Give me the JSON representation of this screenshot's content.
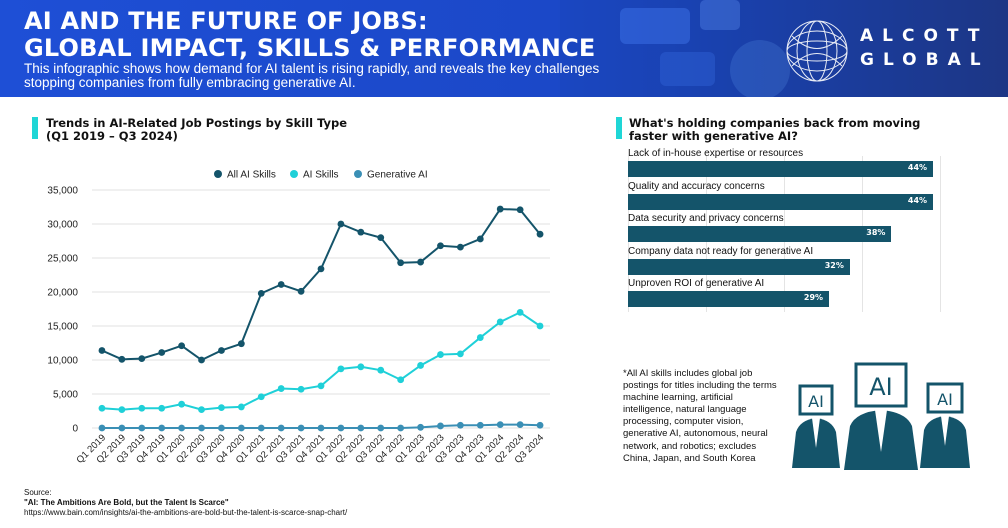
{
  "header": {
    "title_line1": "AI AND THE FUTURE OF JOBS:",
    "title_line2": "GLOBAL IMPACT, SKILLS & PERFORMANCE",
    "subtitle": "This infographic shows how demand for AI talent is rising rapidly, and reveals the key challenges stopping companies from fully embracing generative AI.",
    "logo_line1": "ALCOTT",
    "logo_line2": "GLOBAL"
  },
  "colors": {
    "banner": "#1e4fd6",
    "accent": "#1fd6d6",
    "all_ai": "#14546a",
    "ai_skills": "#1fd0d8",
    "gen_ai": "#3a8fb5",
    "bar": "#14546a"
  },
  "left_panel": {
    "title_line1": "Trends in AI-Related Job Postings by Skill Type",
    "title_line2": "(Q1 2019 – Q3 2024)"
  },
  "right_panel": {
    "title_line1": "What's holding companies back from moving",
    "title_line2": "faster with generative AI?"
  },
  "chart_data": [
    {
      "type": "line",
      "x": [
        "Q1 2019",
        "Q2 2019",
        "Q3 2019",
        "Q4 2019",
        "Q1 2020",
        "Q2 2020",
        "Q3 2020",
        "Q4 2020",
        "Q1 2021",
        "Q2 2021",
        "Q3 2021",
        "Q4 2021",
        "Q1 2022",
        "Q2 2022",
        "Q3 2022",
        "Q4 2022",
        "Q1 2023",
        "Q2 2023",
        "Q3 2023",
        "Q4 2023",
        "Q1 2024",
        "Q2 2024",
        "Q3 2024"
      ],
      "series": [
        {
          "name": "All AI Skills",
          "color": "#14546a",
          "values": [
            11400,
            10100,
            10200,
            11100,
            12100,
            10000,
            11400,
            12400,
            19800,
            21100,
            20100,
            23400,
            30000,
            28800,
            28000,
            24300,
            24400,
            26800,
            26600,
            27800,
            32200,
            32100,
            28500
          ]
        },
        {
          "name": "AI Skills",
          "color": "#1fd0d8",
          "values": [
            2900,
            2700,
            2900,
            2900,
            3500,
            2700,
            3000,
            3100,
            4600,
            5800,
            5700,
            6200,
            8700,
            9000,
            8500,
            7100,
            9200,
            10800,
            10900,
            13300,
            15600,
            17000,
            15000
          ]
        },
        {
          "name": "Generative AI",
          "color": "#3a8fb5",
          "values": [
            0,
            0,
            0,
            0,
            0,
            0,
            0,
            0,
            0,
            0,
            0,
            0,
            0,
            0,
            0,
            0,
            100,
            300,
            400,
            400,
            500,
            500,
            400
          ]
        }
      ],
      "yticks": [
        "35,000",
        "30,000",
        "25,000",
        "20,000",
        "15,000",
        "10,000",
        "5,000",
        "0"
      ],
      "ylim": [
        0,
        35000
      ],
      "legend_position": "top-center",
      "grid": "horizontal"
    },
    {
      "type": "bar",
      "orientation": "horizontal",
      "categories": [
        "Lack of in-house expertise or resources",
        "Quality and accuracy concerns",
        "Data security and privacy concerns",
        "Company data not ready for generative AI",
        "Unproven ROI of generative AI"
      ],
      "values": [
        44,
        44,
        38,
        32,
        29
      ],
      "value_labels": [
        "44%",
        "44%",
        "38%",
        "32%",
        "29%"
      ],
      "xlim": [
        0,
        45
      ]
    }
  ],
  "note": "*All AI skills includes global job postings for titles including the terms machine learning, artificial intelligence, natural language processing, computer vision, generative AI, autonomous, neural network, and robotics; excludes China, Japan, and South Korea",
  "people_labels": [
    "AI",
    "AI",
    "AI"
  ],
  "source": {
    "label": "Source:",
    "title": "\"AI: The Ambitions Are Bold, but the Talent Is Scarce\"",
    "url": "https://www.bain.com/insights/ai-the-ambitions-are-bold-but-the-talent-is-scarce-snap-chart/"
  }
}
